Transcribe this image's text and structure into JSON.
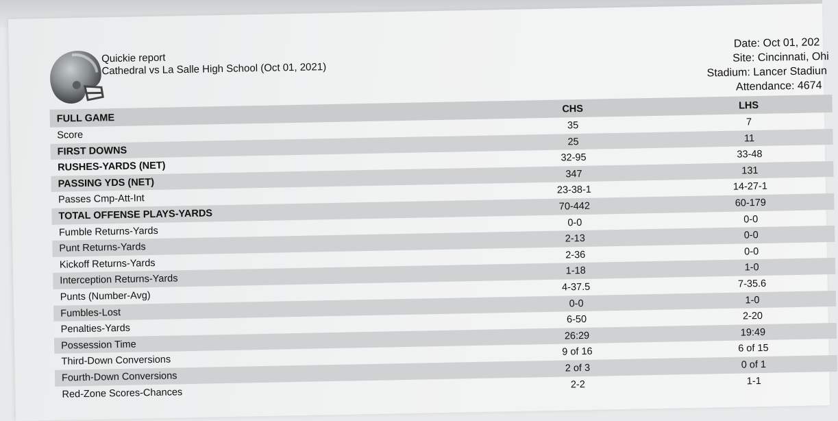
{
  "report": {
    "title": "Quickie report",
    "matchup": "Cathedral vs La Salle High School (Oct 01, 2021)"
  },
  "meta": {
    "date": "Date: Oct 01, 202",
    "site": "Site: Cincinnati, Ohi",
    "stadium": "Stadium: Lancer Stadiun",
    "attendance": "Attendance: 4674"
  },
  "table": {
    "header": {
      "label": "FULL GAME",
      "team1": "CHS",
      "team2": "LHS"
    },
    "rows": [
      {
        "label": "Score",
        "chs": "35",
        "lhs": "7"
      },
      {
        "label": "FIRST DOWNS",
        "chs": "25",
        "lhs": "11"
      },
      {
        "label": "RUSHES-YARDS (NET)",
        "chs": "32-95",
        "lhs": "33-48"
      },
      {
        "label": "PASSING YDS (NET)",
        "chs": "347",
        "lhs": "131"
      },
      {
        "label": "Passes Cmp-Att-Int",
        "chs": "23-38-1",
        "lhs": "14-27-1"
      },
      {
        "label": "TOTAL OFFENSE PLAYS-YARDS",
        "chs": "70-442",
        "lhs": "60-179"
      },
      {
        "label": "Fumble Returns-Yards",
        "chs": "0-0",
        "lhs": "0-0"
      },
      {
        "label": "Punt Returns-Yards",
        "chs": "2-13",
        "lhs": "0-0"
      },
      {
        "label": "Kickoff Returns-Yards",
        "chs": "2-36",
        "lhs": "0-0"
      },
      {
        "label": "Interception Returns-Yards",
        "chs": "1-18",
        "lhs": "1-0"
      },
      {
        "label": "Punts (Number-Avg)",
        "chs": "4-37.5",
        "lhs": "7-35.6"
      },
      {
        "label": "Fumbles-Lost",
        "chs": "0-0",
        "lhs": "1-0"
      },
      {
        "label": "Penalties-Yards",
        "chs": "6-50",
        "lhs": "2-20"
      },
      {
        "label": "Possession Time",
        "chs": "26:29",
        "lhs": "19:49"
      },
      {
        "label": "Third-Down Conversions",
        "chs": "9 of 16",
        "lhs": "6 of 15"
      },
      {
        "label": "Fourth-Down Conversions",
        "chs": "2 of 3",
        "lhs": "0 of 1"
      },
      {
        "label": "Red-Zone Scores-Chances",
        "chs": "2-2",
        "lhs": "1-1"
      }
    ]
  }
}
